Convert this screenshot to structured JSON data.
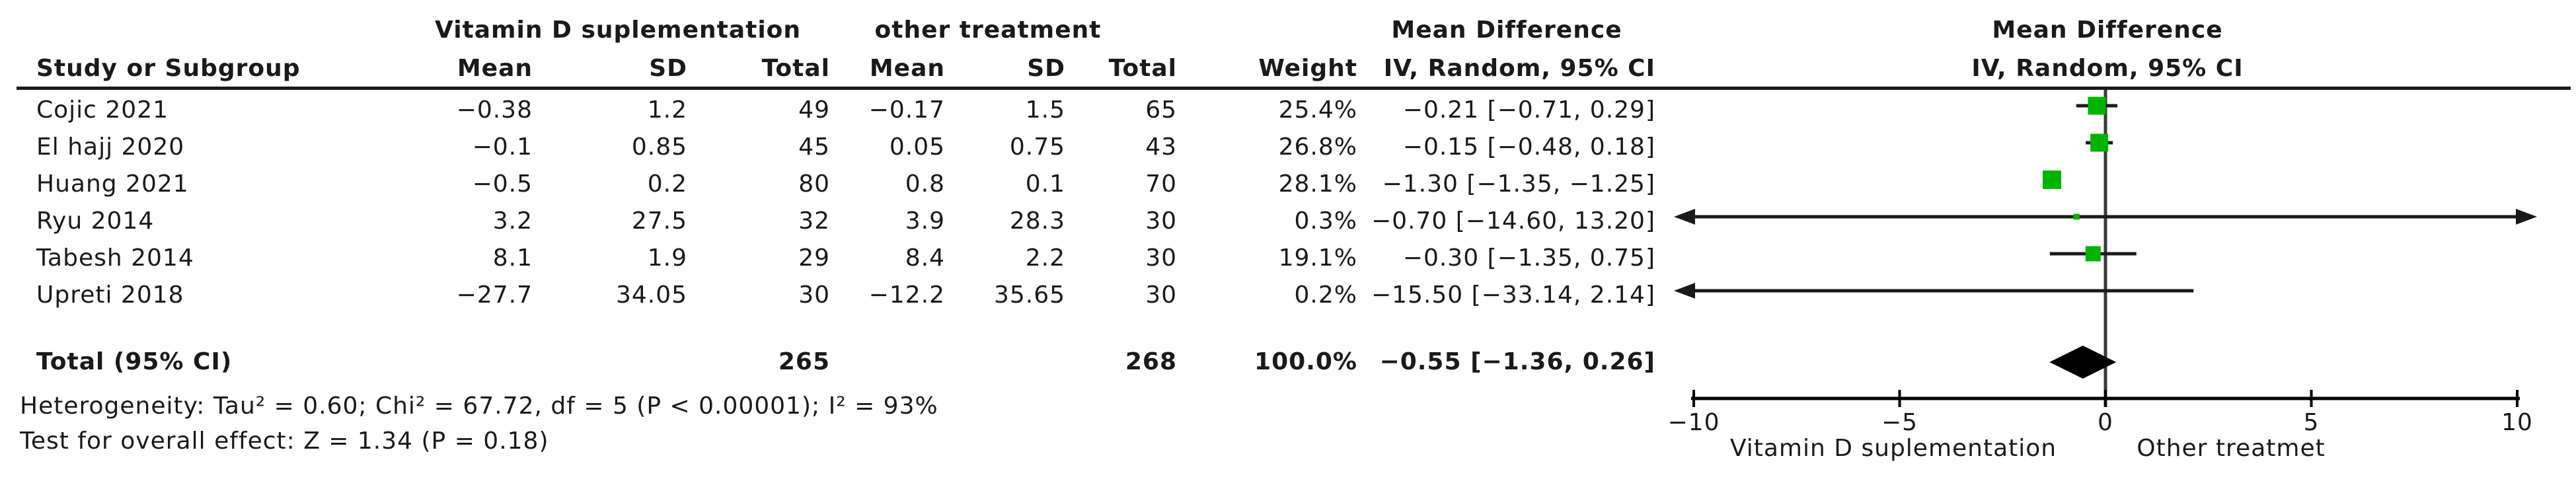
{
  "figure": {
    "table": {
      "group1_header": "Vitamin D suplementation",
      "group2_header": "other treatment",
      "effect_header": "Mean Difference",
      "columns": {
        "study": "Study or Subgroup",
        "mean": "Mean",
        "sd": "SD",
        "total": "Total",
        "weight": "Weight",
        "ci": "IV, Random, 95% CI"
      },
      "rows": [
        {
          "study": "Cojic 2021",
          "mean1": "−0.38",
          "sd1": "1.2",
          "total1": "49",
          "mean2": "−0.17",
          "sd2": "1.5",
          "total2": "65",
          "weight": "25.4%",
          "ci": "−0.21 [−0.71, 0.29]"
        },
        {
          "study": "El hajj 2020",
          "mean1": "−0.1",
          "sd1": "0.85",
          "total1": "45",
          "mean2": "0.05",
          "sd2": "0.75",
          "total2": "43",
          "weight": "26.8%",
          "ci": "−0.15 [−0.48, 0.18]"
        },
        {
          "study": "Huang 2021",
          "mean1": "−0.5",
          "sd1": "0.2",
          "total1": "80",
          "mean2": "0.8",
          "sd2": "0.1",
          "total2": "70",
          "weight": "28.1%",
          "ci": "−1.30 [−1.35, −1.25]"
        },
        {
          "study": "Ryu 2014",
          "mean1": "3.2",
          "sd1": "27.5",
          "total1": "32",
          "mean2": "3.9",
          "sd2": "28.3",
          "total2": "30",
          "weight": "0.3%",
          "ci": "−0.70 [−14.60, 13.20]"
        },
        {
          "study": "Tabesh 2014",
          "mean1": "8.1",
          "sd1": "1.9",
          "total1": "29",
          "mean2": "8.4",
          "sd2": "2.2",
          "total2": "30",
          "weight": "19.1%",
          "ci": "−0.30 [−1.35, 0.75]"
        },
        {
          "study": "Upreti 2018",
          "mean1": "−27.7",
          "sd1": "34.05",
          "total1": "30",
          "mean2": "−12.2",
          "sd2": "35.65",
          "total2": "30",
          "weight": "0.2%",
          "ci": "−15.50 [−33.14, 2.14]"
        }
      ],
      "total_row": {
        "label": "Total (95% CI)",
        "total1": "265",
        "total2": "268",
        "weight": "100.0%",
        "ci": "−0.55 [−1.36, 0.26]"
      },
      "heterogeneity": "Heterogeneity: Tau² = 0.60; Chi² = 67.72, df = 5 (P < 0.00001); I² = 93%",
      "overall_effect": "Test for overall effect: Z = 1.34 (P = 0.18)"
    },
    "plot": {
      "header_line1": "Mean Difference",
      "header_line2": "IV, Random, 95% CI",
      "favours_left": "Vitamin D suplementation",
      "favours_right": "Other treatmet",
      "colors": {
        "square": "#00b400",
        "diamond": "#000000",
        "line": "#1a1a1a",
        "zero_line": "#3a3a3a"
      }
    }
  },
  "chart_data": {
    "type": "forest",
    "title": "Mean Difference — IV, Random, 95% CI",
    "effect_measure": "Mean Difference",
    "model": "IV, Random, 95% CI",
    "axis": {
      "min": -10,
      "max": 10,
      "tick_values": [
        -10,
        -5,
        0,
        5,
        10
      ],
      "tick_labels": [
        "−10",
        "−5",
        "0",
        "5",
        "10"
      ]
    },
    "studies": [
      {
        "name": "Cojic 2021",
        "mean_exp": -0.38,
        "sd_exp": 1.2,
        "n_exp": 49,
        "mean_ctrl": -0.17,
        "sd_ctrl": 1.5,
        "n_ctrl": 65,
        "weight_pct": 25.4,
        "md": -0.21,
        "ci_low": -0.71,
        "ci_high": 0.29
      },
      {
        "name": "El hajj 2020",
        "mean_exp": -0.1,
        "sd_exp": 0.85,
        "n_exp": 45,
        "mean_ctrl": 0.05,
        "sd_ctrl": 0.75,
        "n_ctrl": 43,
        "weight_pct": 26.8,
        "md": -0.15,
        "ci_low": -0.48,
        "ci_high": 0.18
      },
      {
        "name": "Huang 2021",
        "mean_exp": -0.5,
        "sd_exp": 0.2,
        "n_exp": 80,
        "mean_ctrl": 0.8,
        "sd_ctrl": 0.1,
        "n_ctrl": 70,
        "weight_pct": 28.1,
        "md": -1.3,
        "ci_low": -1.35,
        "ci_high": -1.25
      },
      {
        "name": "Ryu 2014",
        "mean_exp": 3.2,
        "sd_exp": 27.5,
        "n_exp": 32,
        "mean_ctrl": 3.9,
        "sd_ctrl": 28.3,
        "n_ctrl": 30,
        "weight_pct": 0.3,
        "md": -0.7,
        "ci_low": -14.6,
        "ci_high": 13.2
      },
      {
        "name": "Tabesh 2014",
        "mean_exp": 8.1,
        "sd_exp": 1.9,
        "n_exp": 29,
        "mean_ctrl": 8.4,
        "sd_ctrl": 2.2,
        "n_ctrl": 30,
        "weight_pct": 19.1,
        "md": -0.3,
        "ci_low": -1.35,
        "ci_high": 0.75
      },
      {
        "name": "Upreti 2018",
        "mean_exp": -27.7,
        "sd_exp": 34.05,
        "n_exp": 30,
        "mean_ctrl": -12.2,
        "sd_ctrl": 35.65,
        "n_ctrl": 30,
        "weight_pct": 0.2,
        "md": -15.5,
        "ci_low": -33.14,
        "ci_high": 2.14
      }
    ],
    "total": {
      "n_exp": 265,
      "n_ctrl": 268,
      "weight_pct": 100.0,
      "md": -0.55,
      "ci_low": -1.36,
      "ci_high": 0.26
    },
    "heterogeneity": {
      "tau2": 0.6,
      "chi2": 67.72,
      "df": 5,
      "p": "< 0.00001",
      "i2_pct": 93
    },
    "overall_effect": {
      "z": 1.34,
      "p": 0.18
    }
  }
}
